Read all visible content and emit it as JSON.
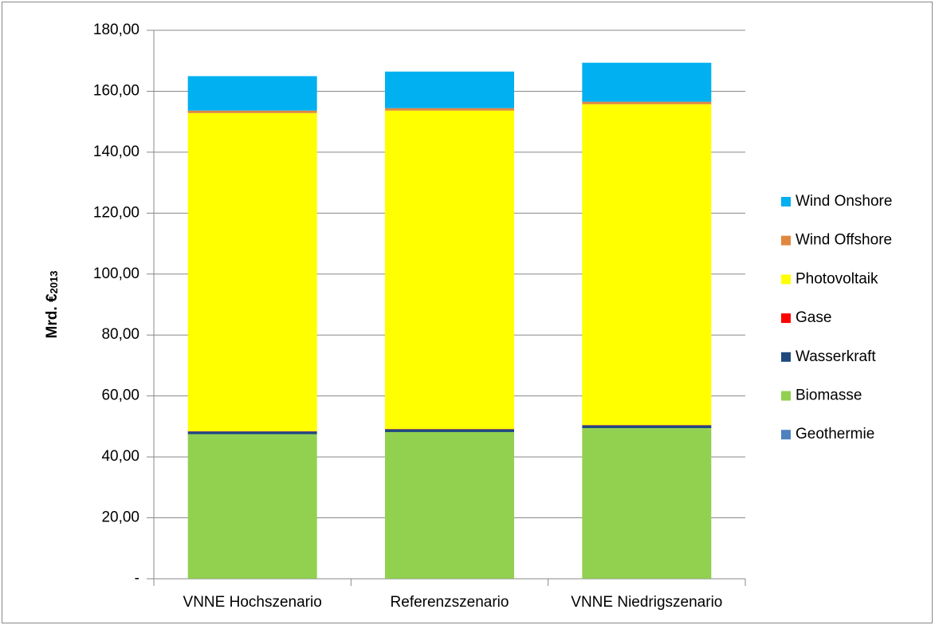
{
  "chart_data": {
    "type": "stacked_bar",
    "y_label": {
      "text": "Mrd. €",
      "subscript": "2013"
    },
    "categories": [
      "VNNE Hochszenario",
      "Referenzszenario",
      "VNNE Niedrigszenario"
    ],
    "series": [
      {
        "name": "Geothermie",
        "color": "#4f81bd",
        "values": [
          0.05,
          0.05,
          0.05
        ]
      },
      {
        "name": "Biomasse",
        "color": "#92d050",
        "values": [
          47.4,
          48.1,
          49.4
        ]
      },
      {
        "name": "Wasserkraft",
        "color": "#1f497d",
        "values": [
          0.9,
          0.9,
          0.9
        ]
      },
      {
        "name": "Gase",
        "color": "#ff0000",
        "values": [
          0.1,
          0.1,
          0.1
        ]
      },
      {
        "name": "Photovoltaik",
        "color": "#ffff00",
        "values": [
          104.4,
          104.5,
          105.3
        ]
      },
      {
        "name": "Wind Offshore",
        "color": "#e0883f",
        "values": [
          0.8,
          0.8,
          0.8
        ]
      },
      {
        "name": "Wind Onshore",
        "color": "#00b0f0",
        "values": [
          11.3,
          12.0,
          12.8
        ]
      }
    ],
    "ylim": [
      0,
      180
    ],
    "yticks": [
      {
        "value": 0,
        "label": "-"
      },
      {
        "value": 20,
        "label": "20,00"
      },
      {
        "value": 40,
        "label": "40,00"
      },
      {
        "value": 60,
        "label": "60,00"
      },
      {
        "value": 80,
        "label": "80,00"
      },
      {
        "value": 100,
        "label": "100,00"
      },
      {
        "value": 120,
        "label": "120,00"
      },
      {
        "value": 140,
        "label": "140,00"
      },
      {
        "value": 160,
        "label": "160,00"
      },
      {
        "value": 180,
        "label": "180,00"
      }
    ],
    "grid": true,
    "legend": "right"
  }
}
